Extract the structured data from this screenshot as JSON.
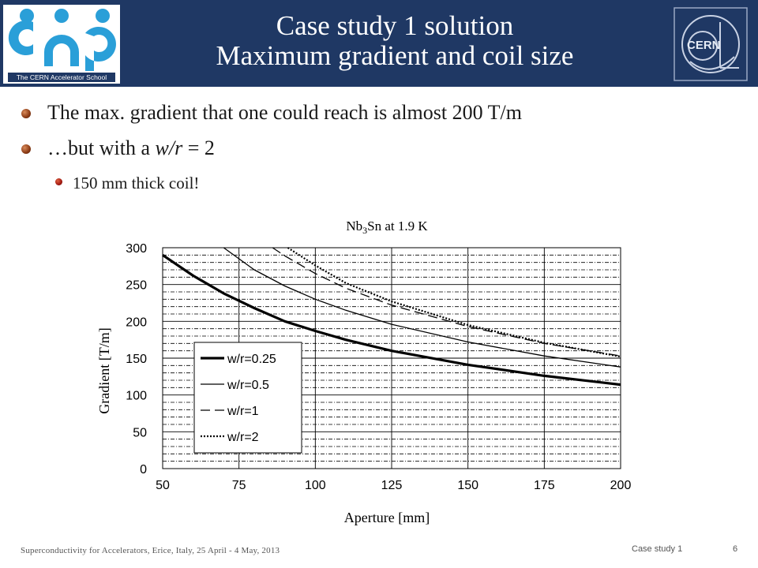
{
  "header": {
    "title_line1": "Case study 1 solution",
    "title_line2": "Maximum gradient and coil size",
    "cas_logo_caption": "The CERN Accelerator School",
    "cern_logo_text": "CERN",
    "brand_color": "#1f3864"
  },
  "bullets": [
    {
      "pre": "The max. gradient that one could reach is almost 200 T/m",
      "italic": "",
      "post": ""
    },
    {
      "pre": "…but with a ",
      "italic": "w/r",
      "post": " = 2"
    }
  ],
  "sub_bullets": [
    {
      "text": "150 mm thick coil!"
    }
  ],
  "chart_data": {
    "type": "line",
    "title_main": "Nb",
    "title_sub": "3",
    "title_rest": "Sn at 1.9 K",
    "xlabel": "Aperture [mm]",
    "ylabel": "Gradient [T/m]",
    "xlim": [
      50,
      200
    ],
    "ylim": [
      0,
      300
    ],
    "xticks": [
      50,
      75,
      100,
      125,
      150,
      175,
      200
    ],
    "yticks": [
      0,
      50,
      100,
      150,
      200,
      250,
      300
    ],
    "grid": true,
    "legend_position": "bottom-left",
    "series": [
      {
        "name": "w/r=0.25",
        "style": "thick",
        "x": [
          50,
          60,
          70,
          80,
          90,
          100,
          110,
          125,
          150,
          175,
          200
        ],
        "y": [
          290,
          262,
          238,
          218,
          200,
          187,
          175,
          160,
          141,
          126,
          114
        ]
      },
      {
        "name": "w/r=0.5",
        "style": "thin",
        "x": [
          70,
          80,
          90,
          100,
          110,
          125,
          150,
          175,
          200
        ],
        "y": [
          300,
          270,
          248,
          230,
          215,
          196,
          172,
          153,
          138
        ]
      },
      {
        "name": "w/r=1",
        "style": "dashed",
        "x": [
          86,
          90,
          100,
          110,
          125,
          150,
          175,
          200
        ],
        "y": [
          300,
          289,
          265,
          245,
          222,
          193,
          170,
          153
        ]
      },
      {
        "name": "w/r=2",
        "style": "dotted",
        "x": [
          91,
          100,
          110,
          125,
          150,
          175,
          200
        ],
        "y": [
          300,
          276,
          252,
          227,
          195,
          171,
          152
        ]
      }
    ]
  },
  "footer": {
    "left": "Superconductivity for Accelerators, Erice, Italy, 25 April - 4 May, 2013",
    "section": "Case study 1",
    "page": "6"
  }
}
